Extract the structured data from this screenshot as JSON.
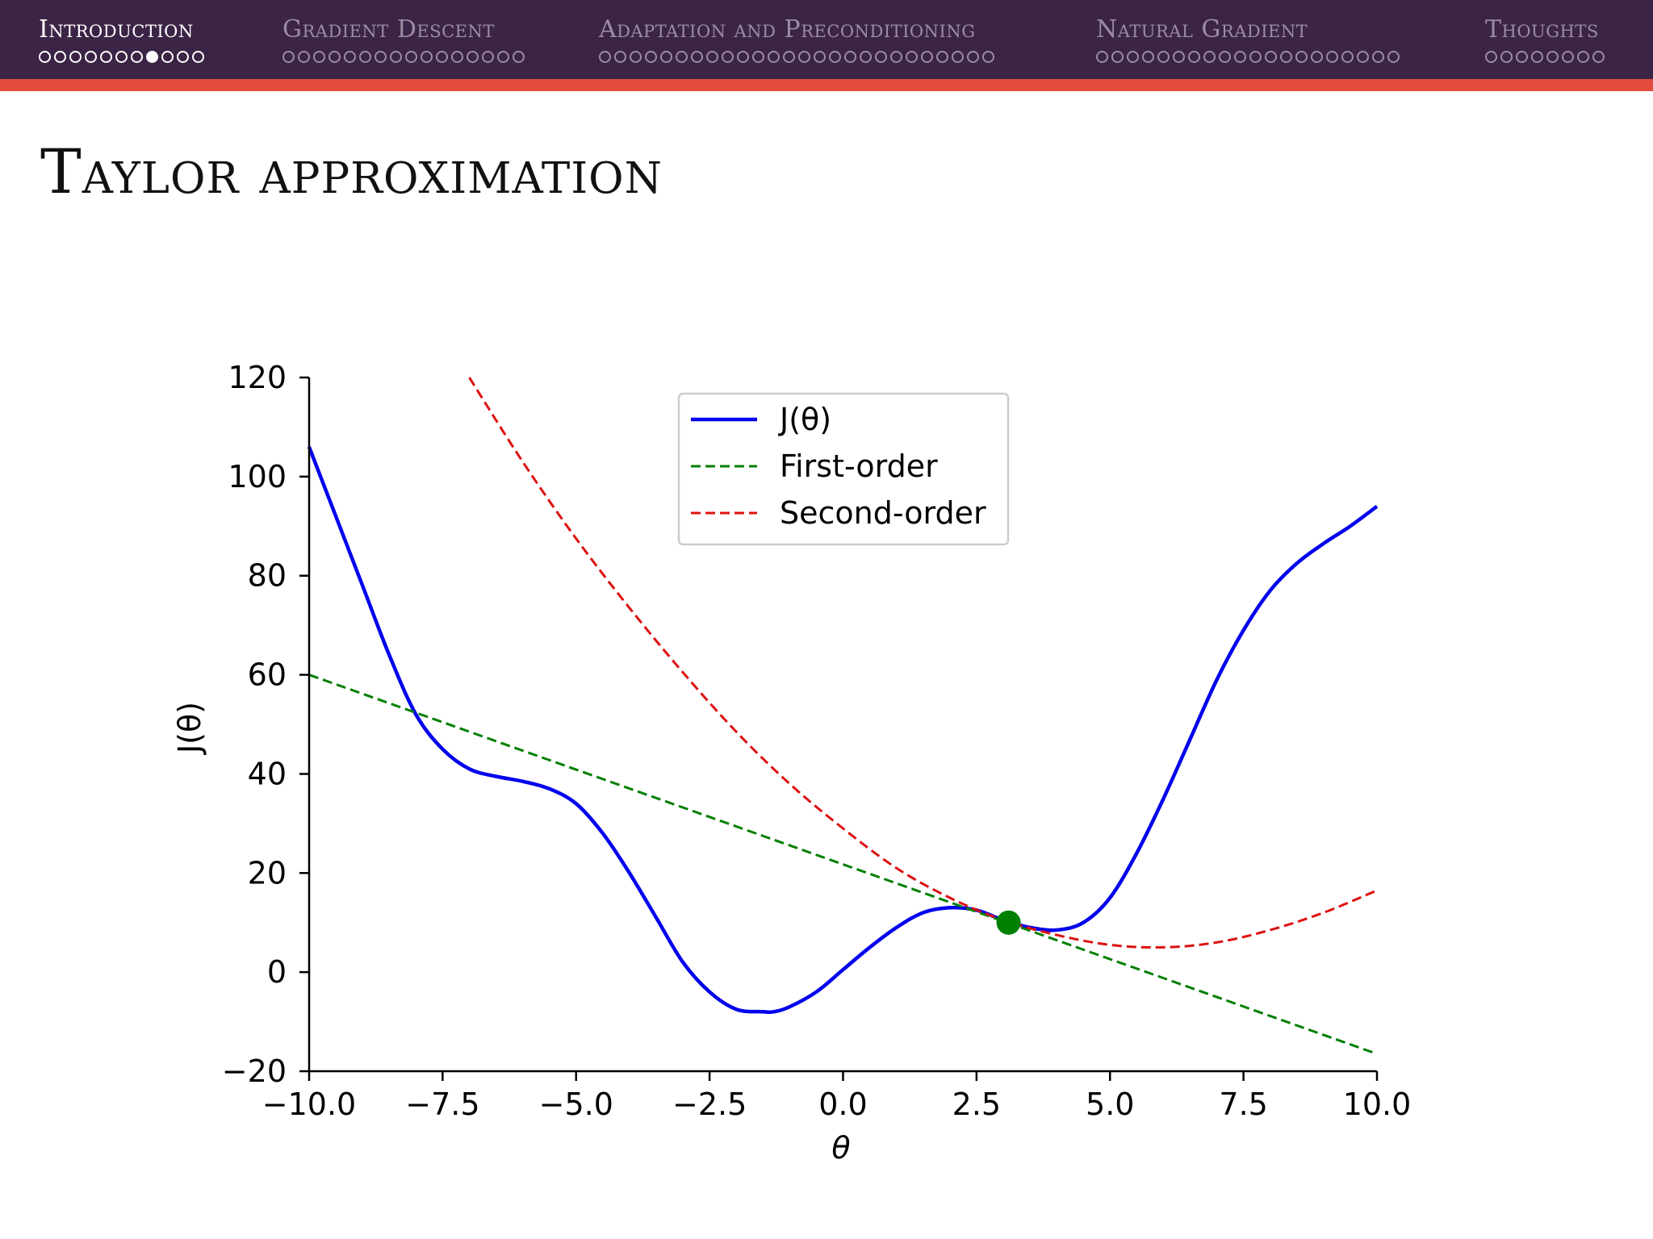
{
  "nav": {
    "sections": [
      {
        "label": "Introduction",
        "dots": 11,
        "filled_index": 7,
        "active": true
      },
      {
        "label": "Gradient Descent",
        "dots": 16,
        "filled_index": -1,
        "active": false
      },
      {
        "label": "Adaptation and Preconditioning",
        "dots": 26,
        "filled_index": -1,
        "active": false
      },
      {
        "label": "Natural Gradient",
        "dots": 20,
        "filled_index": -1,
        "active": false
      },
      {
        "label": "Thoughts",
        "dots": 8,
        "filled_index": -1,
        "active": false
      }
    ]
  },
  "slide": {
    "title": "Taylor approximation"
  },
  "chart_data": {
    "type": "line",
    "xlabel": "θ",
    "ylabel": "J(θ)",
    "xlim": [
      -10,
      10
    ],
    "ylim": [
      -20,
      120
    ],
    "xticks": [
      -10,
      -7.5,
      -5,
      -2.5,
      0,
      2.5,
      5,
      7.5,
      10
    ],
    "xtick_labels": [
      "−10.0",
      "−7.5",
      "−5.0",
      "−2.5",
      "0.0",
      "2.5",
      "5.0",
      "7.5",
      "10.0"
    ],
    "yticks": [
      -20,
      0,
      20,
      40,
      60,
      80,
      100,
      120
    ],
    "ytick_labels": [
      "−20",
      "0",
      "20",
      "40",
      "60",
      "80",
      "100",
      "120"
    ],
    "legend_position": "top-center",
    "grid": false,
    "series": [
      {
        "name": "J(θ)",
        "color": "#0000ee",
        "style": "solid",
        "x": [
          -10,
          -9.5,
          -9,
          -8.5,
          -8,
          -7.5,
          -7,
          -6.5,
          -6,
          -5.5,
          -5,
          -4.5,
          -4,
          -3.5,
          -3,
          -2.5,
          -2,
          -1.5,
          -1.3,
          -1,
          -0.5,
          0,
          0.5,
          1,
          1.5,
          2,
          2.5,
          3,
          3.5,
          4,
          4.5,
          5,
          5.5,
          6,
          6.5,
          7,
          7.5,
          8,
          8.5,
          9,
          9.5,
          10
        ],
        "y": [
          106,
          92,
          78,
          64,
          52,
          45,
          41,
          39.5,
          38.5,
          37,
          34,
          28,
          20,
          11,
          2,
          -4,
          -7.5,
          -8,
          -8,
          -7,
          -4,
          0.5,
          5,
          9,
          12,
          13,
          12.5,
          10.5,
          9,
          8.5,
          10,
          15,
          24,
          35,
          47,
          59,
          69,
          77,
          82.5,
          86.5,
          90,
          94
        ]
      },
      {
        "name": "First-order",
        "color": "#007f00",
        "style": "dashed",
        "x": [
          -10,
          10
        ],
        "y": [
          60,
          -16.5
        ]
      },
      {
        "name": "Second-order",
        "color": "#dd1111",
        "style": "dashed",
        "x": [
          -7,
          -6,
          -5,
          -4,
          -3,
          -2,
          -1,
          0,
          1,
          2,
          3,
          4,
          5,
          6,
          7,
          8,
          9,
          10
        ],
        "y": [
          120,
          103,
          87.5,
          73.5,
          60.5,
          48.5,
          38,
          29,
          21,
          15,
          10.5,
          7.5,
          5.5,
          5,
          6,
          8.5,
          12,
          16.5
        ]
      }
    ],
    "highlight_point": {
      "x": 3.1,
      "y": 10,
      "color": "#008000"
    }
  }
}
